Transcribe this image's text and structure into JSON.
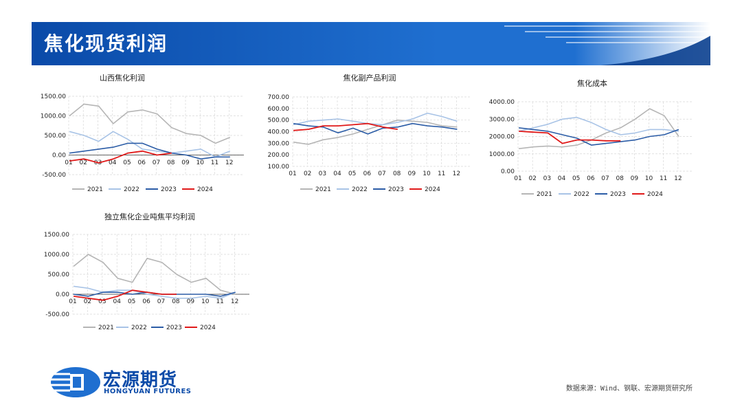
{
  "header": {
    "title": "焦化现货利润"
  },
  "footer": {
    "logo_cn": "宏源期货",
    "logo_en": "HONGYUAN FUTURES",
    "source": "数据来源：Wind、钢联、宏源期货研究所"
  },
  "colors": {
    "2021": "#b5b5b5",
    "2022": "#a8c3e6",
    "2023": "#2b5ca6",
    "2024": "#e01919",
    "banner": "#1f6fd0"
  },
  "chart_data": [
    {
      "type": "line",
      "title": "山西焦化利润",
      "ylim": [
        -500,
        1500
      ],
      "yticks": [
        "1500.00",
        "1000.00",
        "500.00",
        "0.00",
        "-500.00"
      ],
      "categories": [
        "01",
        "02",
        "03",
        "04",
        "05",
        "06",
        "07",
        "08",
        "09",
        "10",
        "11",
        "12"
      ],
      "series": [
        {
          "name": "2021",
          "values": [
            1000,
            1300,
            1250,
            800,
            1100,
            1150,
            1050,
            700,
            550,
            500,
            300,
            450
          ]
        },
        {
          "name": "2022",
          "values": [
            600,
            500,
            350,
            600,
            400,
            150,
            100,
            50,
            100,
            150,
            -50,
            100
          ]
        },
        {
          "name": "2023",
          "values": [
            50,
            100,
            150,
            200,
            300,
            300,
            150,
            50,
            0,
            -100,
            -50,
            -50
          ]
        },
        {
          "name": "2024",
          "values": [
            -150,
            -100,
            -200,
            -100,
            50,
            100,
            0,
            50,
            null,
            null,
            null,
            null
          ]
        }
      ]
    },
    {
      "type": "line",
      "title": "焦化副产品利润",
      "ylim": [
        100,
        700
      ],
      "yticks": [
        "700.00",
        "600.00",
        "500.00",
        "400.00",
        "300.00",
        "200.00",
        "100.00"
      ],
      "categories": [
        "01",
        "02",
        "03",
        "04",
        "05",
        "06",
        "07",
        "08",
        "09",
        "10",
        "11",
        "12"
      ],
      "series": [
        {
          "name": "2021",
          "values": [
            310,
            290,
            330,
            350,
            380,
            420,
            460,
            500,
            490,
            480,
            450,
            440
          ]
        },
        {
          "name": "2022",
          "values": [
            460,
            490,
            500,
            510,
            490,
            470,
            460,
            480,
            510,
            560,
            530,
            490
          ]
        },
        {
          "name": "2023",
          "values": [
            470,
            450,
            440,
            390,
            430,
            380,
            430,
            440,
            470,
            450,
            440,
            420
          ]
        },
        {
          "name": "2024",
          "values": [
            410,
            420,
            450,
            450,
            460,
            470,
            440,
            420,
            null,
            null,
            null,
            null
          ]
        }
      ]
    },
    {
      "type": "line",
      "title": "焦化成本",
      "ylim": [
        0,
        4000
      ],
      "yticks": [
        "4000.00",
        "3000.00",
        "2000.00",
        "1000.00",
        "0.00"
      ],
      "categories": [
        "01",
        "02",
        "03",
        "04",
        "05",
        "06",
        "07",
        "08",
        "09",
        "10",
        "11",
        "12"
      ],
      "series": [
        {
          "name": "2021",
          "values": [
            1300,
            1400,
            1450,
            1400,
            1500,
            1800,
            2200,
            2500,
            3000,
            3600,
            3200,
            2000
          ]
        },
        {
          "name": "2022",
          "values": [
            2300,
            2500,
            2700,
            3000,
            3100,
            2800,
            2400,
            2100,
            2200,
            2400,
            2400,
            2300
          ]
        },
        {
          "name": "2023",
          "values": [
            2500,
            2400,
            2300,
            2100,
            1900,
            1500,
            1600,
            1700,
            1800,
            2000,
            2100,
            2400
          ]
        },
        {
          "name": "2024",
          "values": [
            2300,
            2250,
            2200,
            1600,
            1800,
            1800,
            1750,
            1750,
            null,
            null,
            null,
            null
          ]
        }
      ]
    },
    {
      "type": "line",
      "title": "独立焦化企业吨焦平均利润",
      "ylim": [
        -500,
        1500
      ],
      "yticks": [
        "1500.00",
        "1000.00",
        "500.00",
        "0.00",
        "-500.00"
      ],
      "categories": [
        "01",
        "02",
        "03",
        "04",
        "05",
        "06",
        "07",
        "08",
        "09",
        "10",
        "11",
        "12"
      ],
      "series": [
        {
          "name": "2021",
          "values": [
            700,
            1000,
            800,
            400,
            300,
            900,
            800,
            500,
            300,
            400,
            100,
            0
          ]
        },
        {
          "name": "2022",
          "values": [
            200,
            150,
            50,
            100,
            100,
            0,
            -50,
            -100,
            -100,
            -50,
            -100,
            50
          ]
        },
        {
          "name": "2023",
          "values": [
            0,
            -50,
            50,
            50,
            0,
            50,
            0,
            0,
            0,
            0,
            -50,
            50
          ]
        },
        {
          "name": "2024",
          "values": [
            -50,
            -100,
            -150,
            -50,
            100,
            50,
            0,
            0,
            null,
            null,
            null,
            null
          ]
        }
      ]
    }
  ]
}
